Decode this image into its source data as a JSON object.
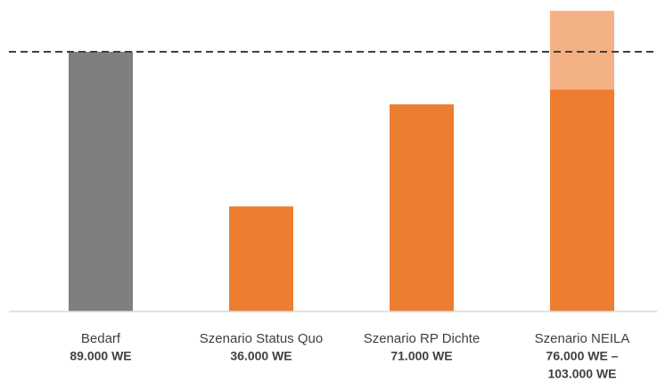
{
  "chart_data": {
    "type": "bar",
    "categories": [
      "Bedarf",
      "Szenario Status Quo",
      "Szenario RP Dichte",
      "Szenario NEILA"
    ],
    "values": [
      89000,
      36000,
      71000,
      76000
    ],
    "colors": [
      "#7f7f7f",
      "#ed7d31",
      "#ed7d31",
      "#ed7d31"
    ],
    "extra_values": [
      null,
      null,
      null,
      27000
    ],
    "extra_color": "#f4b183",
    "value_labels": [
      "89.000 WE",
      "36.000 WE",
      "71.000 WE",
      [
        "76.000 WE –",
        "103.000 WE"
      ]
    ],
    "reference_line": 89000,
    "reference_style": "dashed"
  }
}
